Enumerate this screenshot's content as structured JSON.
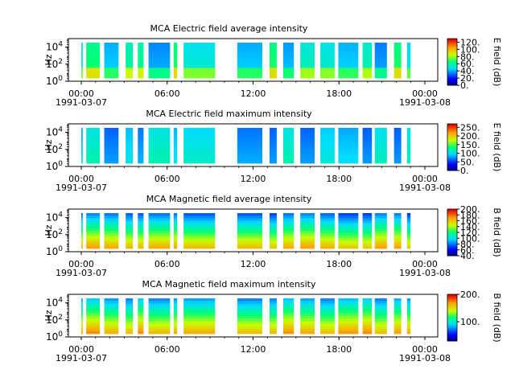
{
  "chart_data": [
    {
      "type": "heatmap",
      "title": "MCA  Electric field average intensity",
      "ylabel": "Hz",
      "y_scale": "log",
      "ylim": [
        1,
        100000
      ],
      "y_ticks": [
        {
          "base": "10",
          "exp": "0"
        },
        {
          "base": "10",
          "exp": "2"
        },
        {
          "base": "10",
          "exp": "4"
        }
      ],
      "x_ticks": [
        "00:00",
        "06:00",
        "12:00",
        "18:00",
        "00:00"
      ],
      "x_dates": [
        "1991-03-07",
        "1991-03-08"
      ],
      "colorbar": {
        "label": "E field (dB)",
        "min": 0,
        "max": 130,
        "ticks": [
          "0.",
          "20.",
          "40.",
          "60.",
          "80.",
          "100.",
          "120."
        ]
      }
    },
    {
      "type": "heatmap",
      "title": "MCA  Electric field maximum intensity",
      "ylabel": "Hz",
      "y_scale": "log",
      "ylim": [
        1,
        100000
      ],
      "y_ticks": [
        {
          "base": "10",
          "exp": "0"
        },
        {
          "base": "10",
          "exp": "2"
        },
        {
          "base": "10",
          "exp": "4"
        }
      ],
      "x_ticks": [
        "00:00",
        "06:00",
        "12:00",
        "18:00",
        "00:00"
      ],
      "x_dates": [
        "1991-03-07",
        "1991-03-08"
      ],
      "colorbar": {
        "label": "E field (dB)",
        "min": 0,
        "max": 270,
        "ticks": [
          "0.",
          "50.",
          "100.",
          "150.",
          "200.",
          "250."
        ]
      }
    },
    {
      "type": "heatmap",
      "title": "MCA  Magnetic field average intensity",
      "ylabel": "Hz",
      "y_scale": "log",
      "ylim": [
        1,
        100000
      ],
      "y_ticks": [
        {
          "base": "10",
          "exp": "0"
        },
        {
          "base": "10",
          "exp": "2"
        },
        {
          "base": "10",
          "exp": "4"
        }
      ],
      "x_ticks": [
        "00:00",
        "06:00",
        "12:00",
        "18:00",
        "00:00"
      ],
      "x_dates": [
        "1991-03-07",
        "1991-03-08"
      ],
      "colorbar": {
        "label": "B field (dB)",
        "min": 40,
        "max": 200,
        "ticks": [
          "40.",
          "60.",
          "80.",
          "100.",
          "120.",
          "140.",
          "160.",
          "180.",
          "200."
        ]
      }
    },
    {
      "type": "heatmap",
      "title": "MCA  Magnetic field maximum intensity",
      "ylabel": "Hz",
      "y_scale": "log",
      "ylim": [
        1,
        100000
      ],
      "y_ticks": [
        {
          "base": "10",
          "exp": "0"
        },
        {
          "base": "10",
          "exp": "2"
        },
        {
          "base": "10",
          "exp": "4"
        }
      ],
      "x_ticks": [
        "00:00",
        "06:00",
        "12:00",
        "18:00",
        "00:00"
      ],
      "x_dates": [
        "1991-03-07",
        "1991-03-08"
      ],
      "colorbar": {
        "label": "B field (dB)",
        "min": 30,
        "max": 200,
        "ticks": [
          "100.",
          "200."
        ]
      }
    }
  ],
  "data_segments_hours": [
    [
      0.0,
      0.1
    ],
    [
      0.35,
      1.3
    ],
    [
      1.6,
      2.6
    ],
    [
      3.1,
      3.6
    ],
    [
      3.95,
      4.35
    ],
    [
      4.7,
      6.2
    ],
    [
      6.45,
      6.7
    ],
    [
      7.15,
      9.35
    ],
    [
      10.9,
      12.65
    ],
    [
      13.15,
      13.65
    ],
    [
      14.1,
      14.85
    ],
    [
      15.3,
      16.3
    ],
    [
      16.7,
      17.7
    ],
    [
      17.95,
      19.35
    ],
    [
      19.65,
      20.3
    ],
    [
      20.5,
      21.35
    ],
    [
      21.85,
      22.35
    ],
    [
      22.75,
      23.0
    ]
  ]
}
